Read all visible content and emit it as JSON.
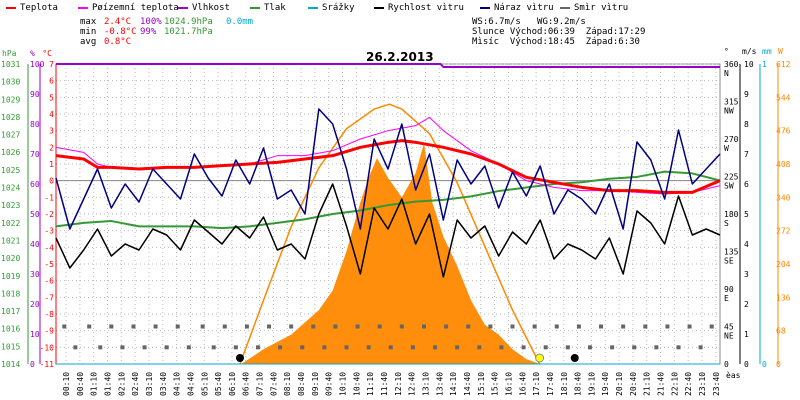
{
  "legend": [
    {
      "label": "Teplota",
      "color": "#ff0000"
    },
    {
      "label": "Pøízemní teplota",
      "color": "#ff00ff"
    },
    {
      "label": "Vlhkost",
      "color": "#9900cc"
    },
    {
      "label": "Tlak",
      "color": "#339933"
    },
    {
      "label": "Srážky",
      "color": "#00aacc"
    },
    {
      "label": "Rychlost vìtru",
      "color": "#000000"
    },
    {
      "label": "Náraz vìtru",
      "color": "#000080"
    },
    {
      "label": "Smìr vìtru",
      "color": "#666666"
    }
  ],
  "stats": {
    "max_label": "max",
    "max_temp": "2.4°C",
    "max_hum": "100%",
    "max_press": "1024.9hPa",
    "max_rain": "0.0mm",
    "min_label": "min",
    "min_temp": "-0.8°C",
    "min_hum": "99%",
    "min_press": "1021.7hPa",
    "avg_label": "avg",
    "avg_temp": "0.8°C",
    "ws": "WS:6.7m/s",
    "wg": "WG:9.2m/s",
    "sun": "Slunce Východ:06:39  Západ:17:29",
    "moon": "Mìsíc  Východ:18:45  Západ:6:30"
  },
  "axis_units": {
    "hpa": "hPa",
    "pct": "%",
    "degc": "°C",
    "deg": "°",
    "ms": "m/s",
    "mm": "mm",
    "w": "W",
    "time": "èas"
  },
  "colors": {
    "temp": "#ff0000",
    "ground": "#ff00ff",
    "hum": "#9900cc",
    "press": "#339933",
    "rain": "#00aacc",
    "wind": "#000000",
    "gust": "#000080",
    "dir": "#666666",
    "sun": "#ff8800",
    "grid": "#bbbbbb"
  },
  "chart_data": {
    "type": "line",
    "title": "26.2.2013",
    "x_ticks": [
      "00:10",
      "00:40",
      "01:10",
      "01:40",
      "02:10",
      "02:40",
      "03:10",
      "03:40",
      "04:10",
      "04:40",
      "05:10",
      "05:40",
      "06:10",
      "06:40",
      "07:10",
      "07:40",
      "08:10",
      "08:40",
      "09:10",
      "09:40",
      "10:10",
      "10:40",
      "11:10",
      "11:40",
      "12:10",
      "12:40",
      "13:10",
      "13:40",
      "14:10",
      "14:40",
      "15:10",
      "15:40",
      "16:10",
      "16:40",
      "17:10",
      "17:40",
      "18:10",
      "18:40",
      "19:10",
      "19:40",
      "20:10",
      "20:40",
      "21:10",
      "21:40",
      "22:10",
      "22:40",
      "23:10",
      "23:40"
    ],
    "axes": {
      "pressure_hpa": {
        "ylim": [
          1014,
          1031
        ],
        "ticks": [
          1014,
          1015,
          1016,
          1017,
          1018,
          1019,
          1020,
          1021,
          1022,
          1023,
          1024,
          1025,
          1026,
          1027,
          1028,
          1029,
          1030,
          1031
        ]
      },
      "humidity_pct": {
        "ylim": [
          0,
          100
        ],
        "ticks": [
          0,
          10,
          20,
          30,
          40,
          50,
          60,
          70,
          80,
          90,
          100
        ]
      },
      "temperature_c": {
        "ylim": [
          -11,
          7
        ],
        "ticks": [
          7,
          6,
          5,
          4,
          3,
          2,
          1,
          0,
          -1,
          -2,
          -3,
          -4,
          -5,
          -6,
          -7,
          -8,
          -9,
          -10,
          -11
        ]
      },
      "direction_deg": {
        "ticks": [
          {
            "v": 360,
            "l": "N"
          },
          {
            "v": 315,
            "l": "NW"
          },
          {
            "v": 270,
            "l": "W"
          },
          {
            "v": 225,
            "l": "SW"
          },
          {
            "v": 180,
            "l": "S"
          },
          {
            "v": 135,
            "l": "SE"
          },
          {
            "v": 90,
            "l": "E"
          },
          {
            "v": 45,
            "l": "NE"
          },
          {
            "v": 0,
            "l": ""
          }
        ]
      },
      "wind_ms": {
        "ylim": [
          0,
          10
        ],
        "ticks": [
          0,
          1,
          2,
          3,
          4,
          5,
          6,
          7,
          8,
          9,
          10
        ]
      },
      "rain_mm": {
        "ylim": [
          0,
          1
        ],
        "ticks": [
          0,
          1
        ]
      },
      "solar_w": {
        "ylim": [
          0,
          612
        ],
        "ticks": [
          0,
          68,
          136,
          204,
          272,
          340,
          408,
          476,
          544,
          612
        ]
      }
    },
    "series": [
      {
        "name": "Teplota",
        "axis": "temperature_c",
        "x": [
          0,
          1,
          1.5,
          2,
          3,
          4,
          5,
          6,
          7,
          8,
          9,
          10,
          11,
          12,
          12.5,
          13,
          14,
          15,
          16,
          17,
          18,
          19,
          20,
          21,
          22,
          23,
          24
        ],
        "values": [
          1.5,
          1.3,
          0.8,
          0.8,
          0.7,
          0.8,
          0.8,
          0.9,
          1.0,
          1.1,
          1.3,
          1.5,
          2.0,
          2.3,
          2.4,
          2.3,
          2.0,
          1.6,
          1.0,
          0.2,
          -0.1,
          -0.4,
          -0.6,
          -0.6,
          -0.7,
          -0.7,
          0.0
        ]
      },
      {
        "name": "Pøízemní teplota",
        "axis": "temperature_c",
        "x": [
          0,
          1,
          1.5,
          2,
          3,
          4,
          5,
          6,
          7,
          8,
          9,
          10,
          11,
          12,
          13,
          13.5,
          14,
          15,
          16,
          17,
          18,
          19,
          20,
          21,
          22,
          23,
          24
        ],
        "values": [
          2.0,
          1.7,
          1.0,
          0.8,
          0.7,
          0.8,
          0.8,
          0.9,
          1.0,
          1.5,
          1.5,
          1.8,
          2.5,
          3.0,
          3.3,
          3.8,
          3.0,
          1.8,
          1.0,
          0.0,
          -0.4,
          -0.6,
          -0.6,
          -0.7,
          -0.8,
          -0.7,
          -0.3
        ]
      },
      {
        "name": "Vlhkost",
        "axis": "humidity_pct",
        "x": [
          0,
          13.9,
          14,
          24
        ],
        "values": [
          100,
          100,
          99,
          99
        ]
      },
      {
        "name": "Tlak",
        "axis": "pressure_hpa",
        "x": [
          0,
          1,
          2,
          3,
          4,
          5,
          6,
          7,
          8,
          9,
          10,
          11,
          12,
          13,
          14,
          15,
          16,
          17,
          18,
          19,
          20,
          21,
          22,
          23,
          24
        ],
        "values": [
          1021.8,
          1022.0,
          1022.1,
          1021.8,
          1021.8,
          1021.8,
          1021.7,
          1021.8,
          1022.0,
          1022.2,
          1022.5,
          1022.7,
          1023.0,
          1023.2,
          1023.3,
          1023.5,
          1023.8,
          1024.0,
          1024.2,
          1024.3,
          1024.5,
          1024.6,
          1024.9,
          1024.8,
          1024.4
        ]
      },
      {
        "name": "Srážky",
        "axis": "rain_mm",
        "x": [
          0,
          24
        ],
        "values": [
          0,
          0
        ]
      },
      {
        "name": "Rychlost vìtru",
        "axis": "wind_ms",
        "x": [
          0,
          0.5,
          1,
          1.5,
          2,
          2.5,
          3,
          3.5,
          4,
          4.5,
          5,
          5.5,
          6,
          6.5,
          7,
          7.5,
          8,
          8.5,
          9,
          9.5,
          10,
          10.5,
          11,
          11.5,
          12,
          12.5,
          13,
          13.5,
          14,
          14.5,
          15,
          15.5,
          16,
          16.5,
          17,
          17.5,
          18,
          18.5,
          19,
          19.5,
          20,
          20.5,
          21,
          21.5,
          22,
          22.5,
          23,
          23.5,
          24
        ],
        "values": [
          4.2,
          3.2,
          3.8,
          4.5,
          3.6,
          4.0,
          3.8,
          4.5,
          4.3,
          3.8,
          4.8,
          4.4,
          4.0,
          4.6,
          4.2,
          4.9,
          3.8,
          4.0,
          3.5,
          5.0,
          6.0,
          4.6,
          3.0,
          5.2,
          4.5,
          5.5,
          4.0,
          5.0,
          2.9,
          4.8,
          4.2,
          4.6,
          3.6,
          4.4,
          4.0,
          4.8,
          3.5,
          4.0,
          3.8,
          3.5,
          4.2,
          3.0,
          5.1,
          4.7,
          4.0,
          5.6,
          4.3,
          4.5,
          4.3
        ]
      },
      {
        "name": "Náraz vìtru",
        "axis": "wind_ms",
        "x": [
          0,
          0.5,
          1,
          1.5,
          2,
          2.5,
          3,
          3.5,
          4,
          4.5,
          5,
          5.5,
          6,
          6.5,
          7,
          7.5,
          8,
          8.5,
          9,
          9.5,
          10,
          10.5,
          11,
          11.5,
          12,
          12.5,
          13,
          13.5,
          14,
          14.5,
          15,
          15.5,
          16,
          16.5,
          17,
          17.5,
          18,
          18.5,
          19,
          19.5,
          20,
          20.5,
          21,
          21.5,
          22,
          22.5,
          23,
          23.5,
          24
        ],
        "values": [
          6.2,
          4.5,
          5.5,
          6.5,
          5.2,
          6.0,
          5.4,
          6.5,
          6.0,
          5.5,
          7.0,
          6.2,
          5.6,
          6.8,
          6.0,
          7.2,
          5.5,
          5.8,
          5.0,
          8.5,
          8.0,
          6.5,
          4.5,
          7.5,
          6.5,
          8.0,
          5.8,
          7.0,
          4.8,
          6.8,
          6.0,
          6.6,
          5.2,
          6.4,
          5.6,
          6.6,
          5.0,
          5.8,
          5.5,
          5.0,
          6.0,
          4.5,
          7.4,
          6.8,
          5.5,
          7.8,
          6.0,
          6.5,
          7.0
        ]
      },
      {
        "name": "Smìr vìtru",
        "axis": "direction_deg",
        "type": "scatter",
        "x": [
          0.3,
          1.2,
          2.0,
          2.8,
          3.6,
          4.4,
          5.3,
          6.1,
          6.9,
          7.7,
          8.5,
          9.3,
          10.1,
          10.9,
          11.7,
          12.5,
          13.3,
          14.1,
          14.9,
          15.7,
          16.5,
          17.3,
          18.1,
          18.9,
          19.7,
          20.5,
          21.3,
          22.1,
          22.9,
          23.7,
          0.7,
          1.6,
          2.4,
          3.2,
          4.0,
          4.8,
          5.7,
          6.5,
          7.3,
          8.1,
          8.9,
          9.7,
          10.5,
          11.3,
          12.1,
          12.9,
          13.7,
          14.5,
          15.3,
          16.1,
          16.9,
          17.7,
          18.5,
          19.3,
          20.1,
          20.9,
          21.7,
          22.5,
          23.3
        ],
        "values": [
          45,
          45,
          45,
          45,
          45,
          45,
          45,
          45,
          45,
          45,
          45,
          45,
          45,
          45,
          45,
          45,
          45,
          45,
          45,
          45,
          45,
          45,
          45,
          45,
          45,
          45,
          45,
          45,
          45,
          45,
          20,
          20,
          20,
          20,
          20,
          20,
          20,
          20,
          20,
          20,
          20,
          20,
          20,
          20,
          20,
          20,
          20,
          20,
          20,
          20,
          20,
          20,
          20,
          20,
          20,
          20,
          20,
          20,
          20
        ]
      },
      {
        "name": "Sluneèní záøení",
        "axis": "solar_w",
        "type": "area",
        "x": [
          6.7,
          7.5,
          8.5,
          9.5,
          10,
          10.5,
          11,
          11.3,
          11.6,
          12,
          12.5,
          13,
          13.3,
          13.6,
          14,
          14.5,
          15,
          15.5,
          16,
          16.5,
          17,
          17.5
        ],
        "values": [
          0,
          30,
          60,
          110,
          150,
          230,
          330,
          380,
          420,
          380,
          340,
          390,
          450,
          330,
          260,
          200,
          130,
          80,
          60,
          30,
          10,
          0
        ]
      },
      {
        "name": "Teoretické záøení",
        "axis": "solar_w",
        "type": "line",
        "x": [
          6.65,
          7.5,
          8.5,
          9.5,
          10.5,
          11.5,
          12.05,
          12.5,
          13.5,
          14.5,
          15.5,
          16.5,
          17.48
        ],
        "values": [
          0,
          130,
          280,
          400,
          480,
          520,
          530,
          520,
          470,
          370,
          240,
          110,
          0
        ]
      }
    ]
  }
}
